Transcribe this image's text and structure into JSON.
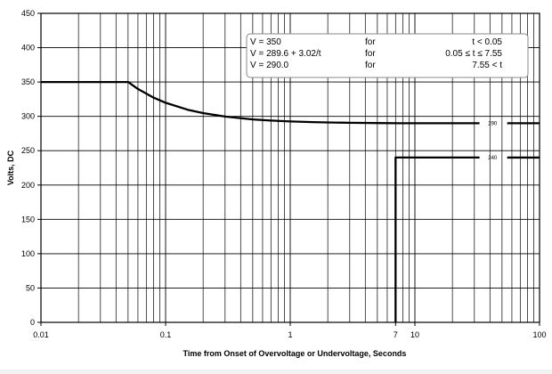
{
  "chart_data": {
    "type": "line",
    "title": "",
    "xlabel": "Time from Onset of Overvoltage or Undervoltage, Seconds",
    "ylabel": "Volts, DC",
    "x_scale": "log",
    "xlim": [
      0.01,
      100
    ],
    "ylim": [
      0,
      450
    ],
    "grid": true,
    "x_ticks": [
      {
        "value": 0.01,
        "label": "0.01"
      },
      {
        "value": 0.1,
        "label": "0.1"
      },
      {
        "value": 1,
        "label": "1"
      },
      {
        "value": 7,
        "label": "7"
      },
      {
        "value": 10,
        "label": "10"
      },
      {
        "value": 100,
        "label": "100"
      }
    ],
    "y_ticks": [
      0,
      50,
      100,
      150,
      200,
      250,
      300,
      350,
      400,
      450
    ],
    "series": [
      {
        "x": [
          0.01,
          0.05,
          0.06,
          0.08,
          0.1,
          0.15,
          0.2,
          0.3,
          0.5,
          0.7,
          1,
          1.5,
          2,
          3,
          5,
          7.55,
          33
        ],
        "y": [
          350,
          350,
          339.9,
          327.3,
          319.8,
          309.7,
          304.7,
          299.7,
          295.6,
          293.9,
          292.6,
          291.6,
          291.1,
          290.6,
          290.2,
          290,
          290
        ],
        "label": "290",
        "label_at_x": 42,
        "continue_x": [
          55,
          100
        ],
        "color": "#000000"
      },
      {
        "x": [
          7,
          7,
          33
        ],
        "y": [
          0,
          240,
          240
        ],
        "label": "240",
        "label_at_x": 42,
        "continue_x": [
          55,
          100
        ],
        "color": "#000000"
      }
    ],
    "annotation": {
      "rows": [
        {
          "eq": "V = 350",
          "for": "for",
          "cond": "t < 0.05"
        },
        {
          "eq": "V = 289.6 + 3.02/t",
          "for": "for",
          "cond": "0.05 ≤ t ≤ 7.55"
        },
        {
          "eq": "V = 290.0",
          "for": "for",
          "cond": "7.55 < t"
        }
      ]
    }
  }
}
